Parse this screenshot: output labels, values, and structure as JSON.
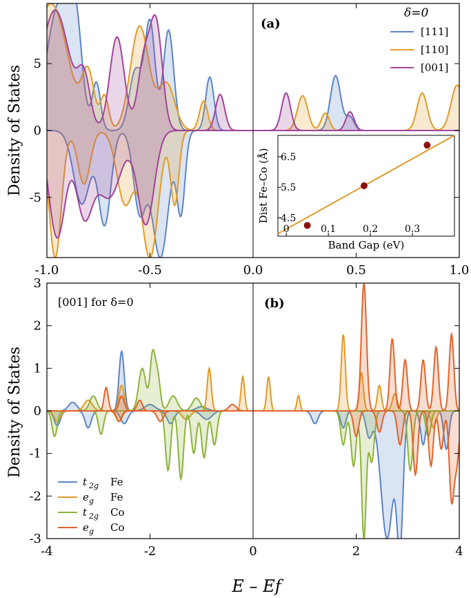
{
  "chart_data": [
    {
      "panel": "a",
      "type": "line",
      "panel_label": "(a)",
      "ylabel": "Density of States",
      "xlim": [
        -1.0,
        1.0
      ],
      "ylim": [
        -9.5,
        9.5
      ],
      "xticks": [
        "-1.0",
        "-0.5",
        "0.0",
        "0.5",
        "1.0"
      ],
      "xtick_values": [
        -1.0,
        -0.5,
        0.0,
        0.5,
        1.0
      ],
      "yticks": [
        "5",
        "0",
        "-5"
      ],
      "ytick_values": [
        5,
        0,
        -5
      ],
      "legend_title": "δ=0",
      "series": [
        {
          "name": "[111]",
          "color": "#5b84c4",
          "up": [
            [
              -0.94,
              9.5,
              0.06
            ],
            [
              -0.86,
              6.0,
              0.03
            ],
            [
              -0.76,
              3.5,
              0.02
            ],
            [
              -0.57,
              4.5,
              0.03
            ],
            [
              -0.5,
              8.0,
              0.025
            ],
            [
              -0.41,
              7.5,
              0.025
            ],
            [
              -0.21,
              4.0,
              0.02
            ],
            [
              0.4,
              4.1,
              0.025
            ],
            [
              0.47,
              1.0,
              0.02
            ]
          ],
          "down": [
            [
              -0.83,
              5.5,
              0.04
            ],
            [
              -0.72,
              7.0,
              0.03
            ],
            [
              -0.55,
              6.0,
              0.03
            ],
            [
              -0.45,
              9.5,
              0.04
            ],
            [
              -0.35,
              6.0,
              0.02
            ]
          ]
        },
        {
          "name": "[110]",
          "color": "#e09b2a",
          "up": [
            [
              -0.98,
              9.5,
              0.08
            ],
            [
              -0.8,
              4.0,
              0.03
            ],
            [
              -0.72,
              2.5,
              0.02
            ],
            [
              -0.55,
              7.8,
              0.045
            ],
            [
              -0.42,
              3.5,
              0.04
            ],
            [
              -0.24,
              2.2,
              0.02
            ],
            [
              0.24,
              2.6,
              0.025
            ],
            [
              0.35,
              1.3,
              0.02
            ],
            [
              0.82,
              2.8,
              0.025
            ],
            [
              0.99,
              3.4,
              0.03
            ]
          ],
          "down": [
            [
              -0.96,
              9.5,
              0.03
            ],
            [
              -0.82,
              4.0,
              0.03
            ],
            [
              -0.62,
              5.5,
              0.04
            ],
            [
              -0.5,
              9.5,
              0.04
            ],
            [
              -0.38,
              5.5,
              0.02
            ]
          ]
        },
        {
          "name": "[001]",
          "color": "#a0439a",
          "up": [
            [
              -0.96,
              9.0,
              0.07
            ],
            [
              -0.82,
              3.5,
              0.03
            ],
            [
              -0.66,
              7.0,
              0.035
            ],
            [
              -0.53,
              5.0,
              0.03
            ],
            [
              -0.47,
              7.8,
              0.03
            ],
            [
              -0.16,
              2.7,
              0.022
            ],
            [
              0.16,
              2.8,
              0.022
            ],
            [
              0.47,
              1.4,
              0.02
            ]
          ],
          "down": [
            [
              -0.95,
              8.0,
              0.04
            ],
            [
              -0.82,
              6.0,
              0.04
            ],
            [
              -0.6,
              0.1,
              0.01
            ],
            [
              -0.7,
              5.0,
              0.06
            ],
            [
              -0.52,
              7.0,
              0.04
            ]
          ]
        }
      ],
      "inset": {
        "type": "scatter",
        "xlabel": "Band Gap (eV)",
        "ylabel": "Dist Fe–Co (Å)",
        "xlim": [
          -0.02,
          0.4
        ],
        "ylim": [
          3.9,
          7.2
        ],
        "xticks": [
          "0",
          "0.1",
          "0.2",
          "0.3"
        ],
        "xtick_values": [
          0,
          0.1,
          0.2,
          0.3
        ],
        "yticks": [
          "4.5",
          "5.5",
          "6.5"
        ],
        "ytick_values": [
          4.5,
          5.5,
          6.5
        ],
        "points": [
          [
            0.05,
            4.25
          ],
          [
            0.185,
            5.55
          ],
          [
            0.335,
            6.88
          ]
        ],
        "fit": [
          [
            -0.02,
            3.98
          ],
          [
            0.4,
            7.25
          ]
        ],
        "point_color": "#8b1010",
        "line_color": "#e09b2a"
      }
    },
    {
      "panel": "b",
      "type": "line",
      "panel_label": "(b)",
      "annotation": "[001] for δ=0",
      "ylabel": "Density of States",
      "xlabel": "E – Ef",
      "xlim": [
        -4,
        4
      ],
      "ylim": [
        -3,
        3
      ],
      "xticks": [
        "-4",
        "-2",
        "0",
        "2",
        "4"
      ],
      "xtick_values": [
        -4,
        -2,
        0,
        2,
        4
      ],
      "yticks": [
        "3",
        "2",
        "1",
        "0",
        "-1",
        "-2",
        "-3"
      ],
      "ytick_values": [
        3,
        2,
        1,
        0,
        -1,
        -2,
        -3
      ],
      "series": [
        {
          "name": "t2g Fe",
          "label_main": "t",
          "label_sub": "2g",
          "label_species": "Fe",
          "color": "#5b84c4",
          "up": [
            [
              -2.55,
              1.4,
              0.05
            ],
            [
              -3.5,
              0.2,
              0.08
            ],
            [
              -2.0,
              0.15,
              0.1
            ],
            [
              -1.0,
              0.1,
              0.1
            ]
          ],
          "down": [
            [
              -3.8,
              0.35,
              0.06
            ],
            [
              -3.2,
              0.4,
              0.06
            ],
            [
              -2.5,
              0.3,
              0.07
            ],
            [
              -1.6,
              0.3,
              0.07
            ],
            [
              -0.9,
              0.2,
              0.1
            ],
            [
              2.25,
              0.6,
              0.06
            ],
            [
              2.6,
              3.0,
              0.12
            ],
            [
              2.85,
              3.0,
              0.06
            ],
            [
              3.3,
              0.8,
              0.05
            ],
            [
              3.75,
              0.9,
              0.05
            ],
            [
              1.2,
              0.3,
              0.06
            ],
            [
              1.75,
              0.4,
              0.05
            ]
          ]
        },
        {
          "name": "eg Fe",
          "label_main": "e",
          "label_sub": "g",
          "label_species": "Fe",
          "color": "#e09b2a",
          "up": [
            [
              -0.85,
              1.0,
              0.04
            ],
            [
              -0.2,
              0.8,
              0.035
            ],
            [
              0.3,
              0.8,
              0.035
            ],
            [
              0.88,
              0.36,
              0.03
            ],
            [
              1.75,
              1.8,
              0.04
            ],
            [
              2.1,
              0.9,
              0.04
            ],
            [
              2.45,
              0.6,
              0.04
            ],
            [
              2.75,
              0.4,
              0.05
            ],
            [
              -2.55,
              0.6,
              0.05
            ],
            [
              -3.2,
              0.25,
              0.08
            ]
          ],
          "down": [
            [
              -3.8,
              0.25,
              0.06
            ],
            [
              -2.6,
              0.25,
              0.06
            ],
            [
              -1.3,
              0.2,
              0.08
            ],
            [
              3.5,
              0.4,
              0.05
            ]
          ]
        },
        {
          "name": "t2g Co",
          "label_main": "t",
          "label_sub": "2g",
          "label_species": "Co",
          "color": "#8cb33a",
          "up": [
            [
              -2.15,
              1.0,
              0.07
            ],
            [
              -1.95,
              1.3,
              0.05
            ],
            [
              -1.85,
              0.8,
              0.05
            ],
            [
              -3.1,
              0.35,
              0.07
            ],
            [
              -1.55,
              0.35,
              0.08
            ],
            [
              -1.1,
              0.3,
              0.08
            ]
          ],
          "down": [
            [
              -3.85,
              0.6,
              0.05
            ],
            [
              -2.95,
              0.55,
              0.05
            ],
            [
              -1.65,
              1.4,
              0.05
            ],
            [
              -1.4,
              1.6,
              0.05
            ],
            [
              -1.15,
              1.0,
              0.05
            ],
            [
              -0.95,
              1.1,
              0.05
            ],
            [
              -0.75,
              0.8,
              0.05
            ],
            [
              1.75,
              0.8,
              0.05
            ],
            [
              1.95,
              1.3,
              0.05
            ],
            [
              2.15,
              3.0,
              0.045
            ],
            [
              2.3,
              1.2,
              0.05
            ],
            [
              3.05,
              1.4,
              0.05
            ],
            [
              3.4,
              0.6,
              0.05
            ]
          ]
        },
        {
          "name": "eg Co",
          "label_main": "e",
          "label_sub": "g",
          "label_species": "Co",
          "color": "#e0632a",
          "up": [
            [
              2.15,
              3.0,
              0.05
            ],
            [
              2.7,
              1.7,
              0.045
            ],
            [
              2.95,
              1.2,
              0.045
            ],
            [
              3.3,
              1.2,
              0.045
            ],
            [
              3.55,
              1.5,
              0.045
            ],
            [
              3.85,
              1.8,
              0.045
            ],
            [
              -2.85,
              0.55,
              0.04
            ],
            [
              -2.55,
              0.35,
              0.05
            ],
            [
              -2.2,
              0.25,
              0.05
            ],
            [
              -0.4,
              0.15,
              0.07
            ]
          ],
          "down": [
            [
              2.0,
              0.6,
              0.05
            ],
            [
              2.45,
              0.5,
              0.05
            ],
            [
              2.85,
              0.8,
              0.05
            ],
            [
              3.15,
              1.5,
              0.045
            ],
            [
              3.45,
              1.3,
              0.045
            ],
            [
              3.65,
              0.9,
              0.045
            ],
            [
              3.85,
              2.0,
              0.045
            ],
            [
              3.95,
              1.2,
              0.05
            ],
            [
              -2.6,
              0.25,
              0.05
            ],
            [
              -1.8,
              0.25,
              0.06
            ]
          ]
        }
      ]
    }
  ]
}
